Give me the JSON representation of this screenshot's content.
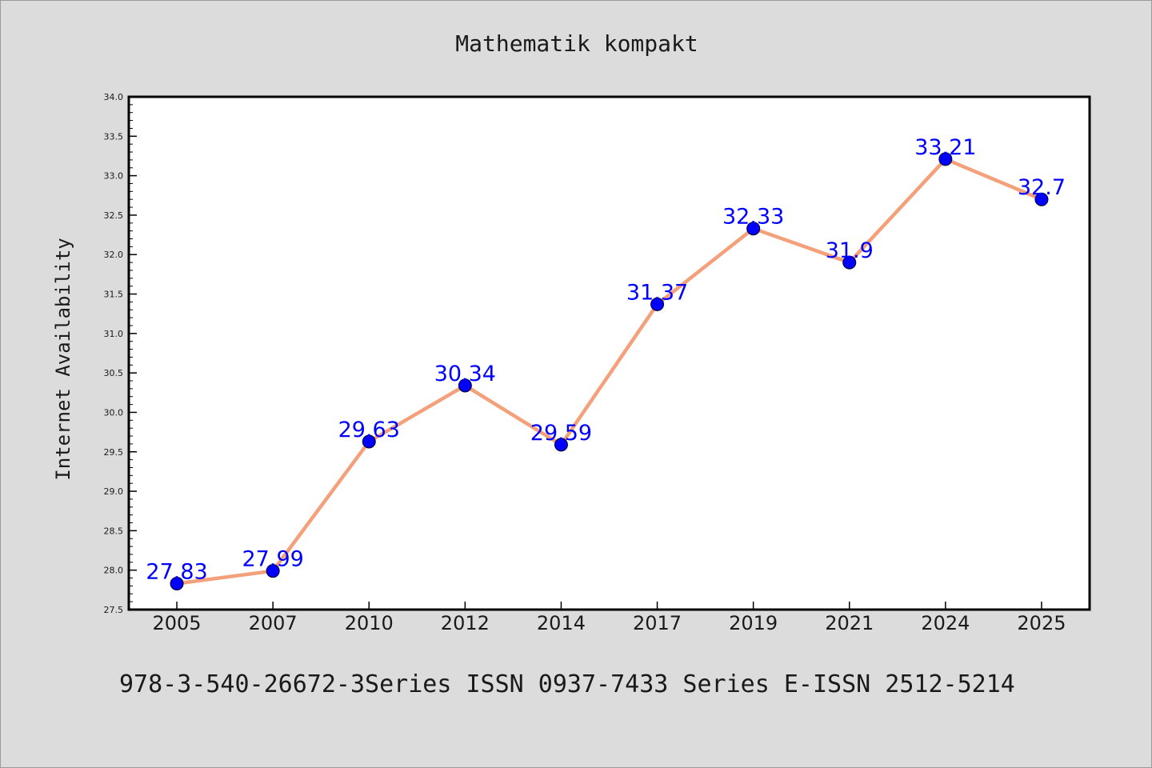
{
  "chart_data": {
    "type": "line",
    "title": "Mathematik kompakt",
    "xlabel": "",
    "ylabel": "Internet Availability",
    "categories": [
      "2005",
      "2007",
      "2010",
      "2012",
      "2014",
      "2017",
      "2019",
      "2021",
      "2024",
      "2025"
    ],
    "series": [
      {
        "values": [
          27.83,
          27.99,
          29.63,
          30.34,
          29.59,
          31.37,
          32.33,
          31.9,
          33.21,
          32.7
        ]
      }
    ],
    "data_labels": [
      "27.83",
      "27.99",
      "29.63",
      "30.34",
      "29.59",
      "31.37",
      "32.33",
      "31.9",
      "33.21",
      "32.7"
    ],
    "ylim": [
      27.5,
      34.0
    ],
    "y_ticks": [
      "27.5",
      "28.0",
      "28.5",
      "29.0",
      "29.5",
      "30.0",
      "30.5",
      "31.0",
      "31.5",
      "32.0",
      "32.5",
      "33.0",
      "33.5",
      "34.0"
    ],
    "grid": false,
    "legend": "none",
    "footer": "978-3-540-26672-3Series ISSN 0937-7433 Series E-ISSN 2512-5214",
    "colors": {
      "background": "#dcdcdc",
      "plot_background": "#ffffff",
      "line": "#f4a07a",
      "marker": "#0000ff",
      "data_label": "#0000ff",
      "text": "#1a1a1a"
    }
  }
}
